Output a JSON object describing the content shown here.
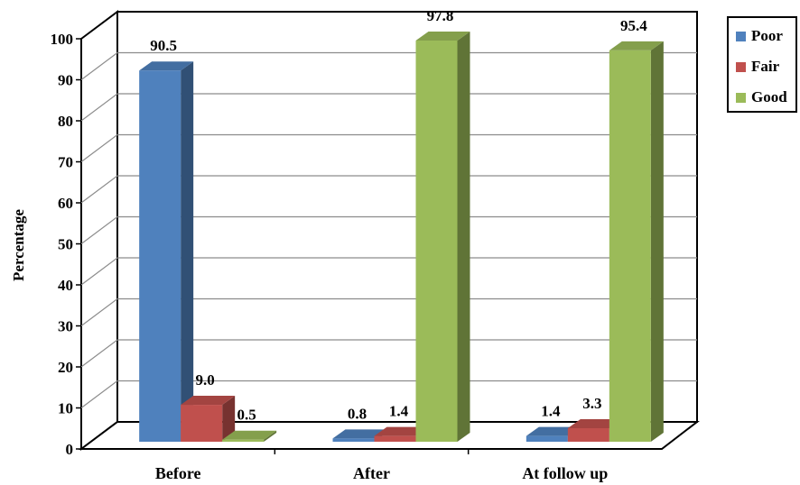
{
  "chart_data": {
    "type": "bar",
    "ylabel": "Percentage",
    "ylim": [
      0,
      100
    ],
    "yticks": [
      "0",
      "10",
      "20",
      "30",
      "40",
      "50",
      "60",
      "70",
      "80",
      "90",
      "100"
    ],
    "categories": [
      "Before",
      "After",
      "At follow up"
    ],
    "series": [
      {
        "name": "Poor",
        "color": "#4F81BD",
        "values": [
          90.5,
          0.8,
          1.4
        ],
        "labels": [
          "90.5",
          "0.8",
          "1.4"
        ]
      },
      {
        "name": "Fair",
        "color": "#C0504D",
        "values": [
          9.0,
          1.4,
          3.3
        ],
        "labels": [
          "9.0",
          "1.4",
          "3.3"
        ]
      },
      {
        "name": "Good",
        "color": "#9BBB59",
        "values": [
          0.5,
          97.8,
          95.4
        ],
        "labels": [
          "0.5",
          "97.8",
          "95.4"
        ]
      }
    ],
    "grid": true,
    "legend_position": "top-right",
    "style": "3d-clustered-column"
  }
}
